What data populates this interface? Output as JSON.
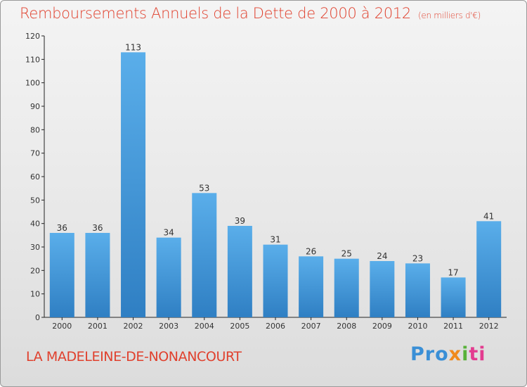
{
  "header": {
    "title": "Remboursements Annuels de la Dette de 2000 à 2012",
    "subtitle": "(en milliers d'€)"
  },
  "footer": {
    "commune": "LA MADELEINE-DE-NONANCOURT",
    "logo": "Proxiti"
  },
  "chart_data": {
    "type": "bar",
    "title": "Remboursements Annuels de la Dette de 2000 à 2012",
    "subtitle": "(en milliers d'€)",
    "categories": [
      "2000",
      "2001",
      "2002",
      "2003",
      "2004",
      "2005",
      "2006",
      "2007",
      "2008",
      "2009",
      "2010",
      "2011",
      "2012"
    ],
    "values": [
      36,
      36,
      113,
      34,
      53,
      39,
      31,
      26,
      25,
      24,
      23,
      17,
      41
    ],
    "xlabel": "",
    "ylabel": "",
    "ylim": [
      0,
      120
    ],
    "yticks": [
      0,
      10,
      20,
      30,
      40,
      50,
      60,
      70,
      80,
      90,
      100,
      110,
      120
    ],
    "grid": false,
    "data_labels": true,
    "colors": {
      "bar_light": "#5aaeea",
      "bar_dark": "#2f7fc3",
      "title": "#e0402d"
    }
  }
}
